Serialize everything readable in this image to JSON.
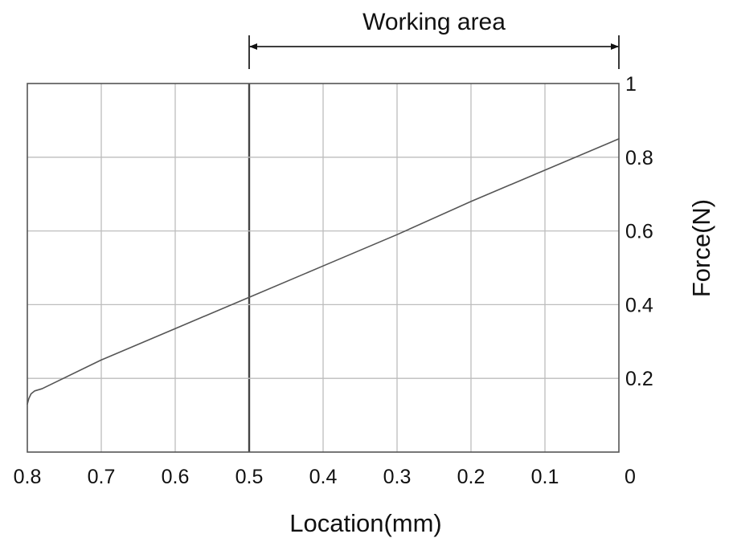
{
  "chart_data": {
    "type": "line",
    "title": "",
    "xlabel": "Location(mm)",
    "ylabel": "Force(N)",
    "x_axis": {
      "reversed": true,
      "xlim": [
        0.8,
        0
      ],
      "ticks": [
        0.8,
        0.7,
        0.6,
        0.5,
        0.4,
        0.3,
        0.2,
        0.1,
        0
      ],
      "tick_labels": [
        "0.8",
        "0.7",
        "0.6",
        "0.5",
        "0.4",
        "0.3",
        "0.2",
        "0.1",
        "0"
      ]
    },
    "y_axis": {
      "position": "right",
      "ylim": [
        0,
        1
      ],
      "ticks": [
        0,
        0.2,
        0.4,
        0.6,
        0.8,
        1
      ],
      "tick_labels": [
        "",
        "0.2",
        "0.4",
        "0.6",
        "0.8",
        "1"
      ]
    },
    "grid": true,
    "series": [
      {
        "color": "#555555",
        "x": [
          0.8,
          0.798,
          0.795,
          0.79,
          0.78,
          0.7,
          0.6,
          0.5,
          0.4,
          0.3,
          0.2,
          0.1,
          0
        ],
        "y": [
          0.13,
          0.145,
          0.158,
          0.166,
          0.172,
          0.25,
          0.335,
          0.42,
          0.505,
          0.59,
          0.68,
          0.765,
          0.85
        ]
      }
    ],
    "annotations": [
      {
        "type": "range-arrow",
        "label": "Working area",
        "x_range": [
          0.5,
          0
        ]
      }
    ],
    "emphasized_x": 0.5
  }
}
